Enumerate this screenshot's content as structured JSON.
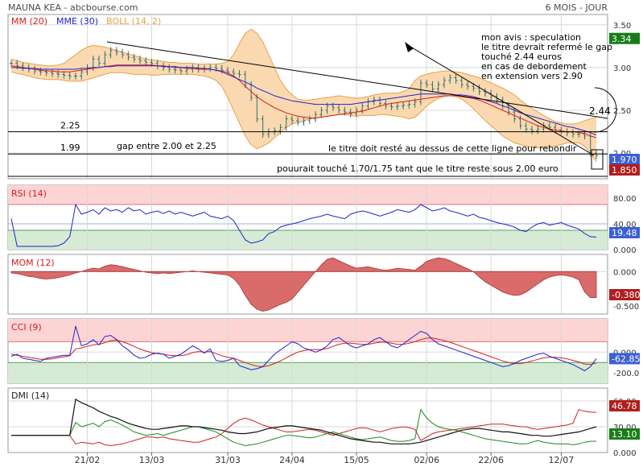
{
  "header": {
    "title": "MAUNA KEA - abcbourse.com",
    "period": "6 MOIS - JOUR"
  },
  "colors": {
    "bg": "#ffffff",
    "grid": "#d8d8d8",
    "frame": "#9a9a9a",
    "candle": "#2f6f6f",
    "mm": "#d81c1c",
    "mme": "#2222cc",
    "boll_fill": "#fbd9b0",
    "boll_line": "#e7a04a",
    "red_zone": "#fcd4d4",
    "green_zone": "#d5ebd5",
    "mom_fill": "#d96b6b",
    "badge_green": "#1a7d1a",
    "badge_red": "#b01e1e",
    "badge_blue": "#3b5fd6"
  },
  "chart_data": [
    {
      "panel": "price",
      "type": "candlestick",
      "legend": [
        {
          "label": "MM (20)",
          "color": "#d81c1c"
        },
        {
          "label": "MME (30)",
          "color": "#2222cc"
        },
        {
          "label": "BOLL (14, 2)",
          "color": "#e7a04a"
        }
      ],
      "y_ticks": [
        "3.50",
        "3.00",
        "2.50",
        "2.00"
      ],
      "ylim": [
        1.7,
        3.62
      ],
      "x_tick_labels": [
        "21/02",
        "13/03",
        "31/03",
        "24/04",
        "15/05",
        "02/06",
        "22/06",
        "12/07"
      ],
      "close": [
        3.05,
        3.02,
        3.0,
        2.98,
        2.96,
        2.95,
        2.94,
        2.93,
        2.92,
        2.91,
        2.9,
        2.9,
        2.95,
        3.0,
        3.1,
        3.05,
        3.15,
        3.2,
        3.18,
        3.15,
        3.12,
        3.1,
        3.08,
        3.06,
        3.05,
        3.02,
        3.0,
        2.98,
        2.97,
        2.96,
        2.98,
        3.0,
        2.98,
        2.99,
        3.0,
        2.99,
        2.97,
        2.95,
        2.93,
        2.92,
        2.8,
        2.65,
        2.4,
        2.22,
        2.25,
        2.26,
        2.3,
        2.4,
        2.38,
        2.36,
        2.38,
        2.4,
        2.45,
        2.5,
        2.55,
        2.53,
        2.5,
        2.48,
        2.46,
        2.5,
        2.55,
        2.6,
        2.62,
        2.58,
        2.55,
        2.54,
        2.55,
        2.56,
        2.57,
        2.6,
        2.82,
        2.8,
        2.75,
        2.8,
        2.85,
        2.88,
        2.85,
        2.8,
        2.78,
        2.76,
        2.72,
        2.7,
        2.66,
        2.62,
        2.55,
        2.48,
        2.4,
        2.32,
        2.28,
        2.26,
        2.28,
        2.32,
        2.3,
        2.27,
        2.25,
        2.24,
        2.22,
        2.22,
        2.2,
        2.0,
        1.97
      ],
      "mm20": [
        3.02,
        3.01,
        3.0,
        2.99,
        2.98,
        2.97,
        2.96,
        2.96,
        2.95,
        2.95,
        2.95,
        2.96,
        2.97,
        2.98,
        2.99,
        3.0,
        3.01,
        3.02,
        3.03,
        3.03,
        3.03,
        3.03,
        3.03,
        3.03,
        3.03,
        3.02,
        3.02,
        3.01,
        3.0,
        3.0,
        2.99,
        2.99,
        2.98,
        2.98,
        2.98,
        2.97,
        2.96,
        2.94,
        2.9,
        2.85,
        2.78,
        2.72,
        2.66,
        2.61,
        2.57,
        2.53,
        2.5,
        2.47,
        2.45,
        2.43,
        2.42,
        2.41,
        2.41,
        2.42,
        2.43,
        2.44,
        2.45,
        2.46,
        2.47,
        2.48,
        2.49,
        2.51,
        2.53,
        2.55,
        2.57,
        2.58,
        2.59,
        2.6,
        2.61,
        2.62,
        2.63,
        2.64,
        2.65,
        2.66,
        2.67,
        2.67,
        2.67,
        2.66,
        2.65,
        2.64,
        2.62,
        2.59,
        2.56,
        2.53,
        2.5,
        2.47,
        2.44,
        2.41,
        2.38,
        2.35,
        2.32,
        2.3,
        2.28,
        2.27,
        2.26,
        2.25,
        2.25,
        2.24,
        2.23,
        2.2,
        2.18
      ],
      "mme30": [
        3.0,
        3.0,
        2.99,
        2.99,
        2.99,
        2.98,
        2.98,
        2.98,
        2.98,
        2.98,
        2.98,
        2.98,
        2.99,
        2.99,
        3.0,
        3.0,
        3.01,
        3.01,
        3.02,
        3.02,
        3.02,
        3.02,
        3.02,
        3.02,
        3.02,
        3.02,
        3.01,
        3.01,
        3.01,
        3.0,
        3.0,
        3.0,
        2.99,
        2.99,
        2.98,
        2.97,
        2.95,
        2.92,
        2.89,
        2.86,
        2.83,
        2.8,
        2.76,
        2.73,
        2.7,
        2.67,
        2.65,
        2.63,
        2.61,
        2.6,
        2.59,
        2.58,
        2.57,
        2.57,
        2.57,
        2.57,
        2.57,
        2.57,
        2.57,
        2.58,
        2.59,
        2.6,
        2.61,
        2.62,
        2.63,
        2.64,
        2.65,
        2.66,
        2.67,
        2.68,
        2.69,
        2.69,
        2.69,
        2.69,
        2.69,
        2.69,
        2.68,
        2.68,
        2.67,
        2.66,
        2.64,
        2.62,
        2.6,
        2.58,
        2.55,
        2.53,
        2.5,
        2.47,
        2.45,
        2.43,
        2.41,
        2.39,
        2.37,
        2.35,
        2.33,
        2.31,
        2.3,
        2.28,
        2.26,
        2.24,
        2.21
      ],
      "boll_upper": [
        3.1,
        3.08,
        3.06,
        3.05,
        3.04,
        3.03,
        3.02,
        3.02,
        3.03,
        3.05,
        3.1,
        3.15,
        3.2,
        3.24,
        3.26,
        3.25,
        3.24,
        3.22,
        3.2,
        3.18,
        3.16,
        3.14,
        3.12,
        3.1,
        3.09,
        3.08,
        3.07,
        3.06,
        3.06,
        3.05,
        3.05,
        3.05,
        3.04,
        3.04,
        3.04,
        3.04,
        3.05,
        3.07,
        3.15,
        3.28,
        3.4,
        3.45,
        3.4,
        3.3,
        3.15,
        3.0,
        2.85,
        2.75,
        2.68,
        2.63,
        2.62,
        2.62,
        2.63,
        2.64,
        2.65,
        2.66,
        2.67,
        2.66,
        2.65,
        2.64,
        2.65,
        2.66,
        2.68,
        2.69,
        2.7,
        2.7,
        2.7,
        2.72,
        2.75,
        2.85,
        2.9,
        2.92,
        2.94,
        2.95,
        2.96,
        2.96,
        2.95,
        2.94,
        2.92,
        2.9,
        2.88,
        2.85,
        2.82,
        2.79,
        2.76,
        2.72,
        2.68,
        2.62,
        2.57,
        2.52,
        2.48,
        2.44,
        2.4,
        2.37,
        2.35,
        2.34,
        2.34,
        2.35,
        2.38,
        2.4,
        2.42
      ],
      "boll_lower": [
        2.95,
        2.93,
        2.92,
        2.9,
        2.88,
        2.87,
        2.86,
        2.86,
        2.86,
        2.85,
        2.84,
        2.84,
        2.84,
        2.86,
        2.88,
        2.9,
        2.92,
        2.94,
        2.94,
        2.94,
        2.93,
        2.92,
        2.92,
        2.92,
        2.91,
        2.91,
        2.92,
        2.92,
        2.92,
        2.92,
        2.92,
        2.92,
        2.91,
        2.9,
        2.88,
        2.85,
        2.78,
        2.65,
        2.5,
        2.35,
        2.2,
        2.1,
        2.05,
        2.08,
        2.12,
        2.18,
        2.24,
        2.3,
        2.34,
        2.36,
        2.38,
        2.4,
        2.41,
        2.42,
        2.43,
        2.44,
        2.45,
        2.45,
        2.44,
        2.43,
        2.44,
        2.44,
        2.44,
        2.45,
        2.45,
        2.44,
        2.43,
        2.42,
        2.4,
        2.42,
        2.48,
        2.55,
        2.6,
        2.64,
        2.66,
        2.67,
        2.66,
        2.63,
        2.58,
        2.52,
        2.45,
        2.38,
        2.32,
        2.26,
        2.2,
        2.16,
        2.12,
        2.1,
        2.08,
        2.07,
        2.06,
        2.06,
        2.07,
        2.08,
        2.1,
        2.12,
        2.12,
        2.12,
        2.08,
        2.0,
        1.9
      ],
      "value_badges": [
        {
          "label": "3.34",
          "color": "#1a7d1a"
        },
        {
          "label": "1.970",
          "color": "#3b5fd6"
        },
        {
          "label": "1.850",
          "color": "#b01e1e"
        }
      ],
      "horizontal_lines": [
        {
          "label": "2.25",
          "value": 2.25
        },
        {
          "label": "1.99",
          "value": 1.99
        }
      ],
      "annotations": {
        "opinion": [
          "mon avis : speculation",
          "le titre devrait refermé le gap",
          "touché 2.44 euros",
          "en cas de debordement",
          "en extension vers 2.90"
        ],
        "gap": "gap entre 2.00 et 2.25",
        "stay_above": "le titre  doit resté au dessus de cette ligne pour rebondir",
        "target_low": "pouurait touché 1.70/1.75 tant que le titre reste sous 2.00 euro",
        "target_244": "2.44"
      }
    },
    {
      "panel": "rsi",
      "type": "line",
      "legend": [
        {
          "label": "RSI (14)",
          "color": "#d81c1c"
        }
      ],
      "y_ticks": [
        "80.00",
        "40.00",
        "0.000"
      ],
      "ylim": [
        0,
        100
      ],
      "values": [
        48,
        5,
        5,
        5,
        5,
        5,
        5,
        5,
        6,
        10,
        20,
        70,
        55,
        58,
        62,
        55,
        65,
        60,
        62,
        58,
        65,
        60,
        62,
        55,
        58,
        60,
        56,
        60,
        55,
        58,
        55,
        52,
        55,
        58,
        52,
        50,
        48,
        52,
        45,
        30,
        15,
        10,
        12,
        15,
        25,
        28,
        35,
        38,
        40,
        42,
        45,
        48,
        50,
        52,
        55,
        52,
        50,
        48,
        55,
        58,
        60,
        58,
        55,
        52,
        55,
        58,
        62,
        60,
        58,
        62,
        70,
        65,
        60,
        62,
        65,
        60,
        58,
        55,
        52,
        55,
        50,
        48,
        45,
        42,
        40,
        38,
        35,
        30,
        28,
        35,
        40,
        42,
        38,
        40,
        42,
        38,
        35,
        32,
        25,
        20,
        19.48
      ],
      "zones": {
        "red_from": 70,
        "green_to": 30
      },
      "value_badges": [
        {
          "label": "19.48",
          "color": "#3b5fd6"
        }
      ]
    },
    {
      "panel": "momentum",
      "type": "area",
      "legend": [
        {
          "label": "MOM (12)",
          "color": "#d81c1c"
        }
      ],
      "y_ticks": [
        "0.000",
        "-0.500"
      ],
      "ylim": [
        -0.62,
        0.25
      ],
      "values": [
        -0.02,
        -0.03,
        -0.05,
        -0.07,
        -0.08,
        -0.1,
        -0.11,
        -0.1,
        -0.09,
        -0.07,
        -0.05,
        -0.02,
        0.0,
        0.03,
        0.05,
        0.04,
        0.08,
        0.1,
        0.09,
        0.07,
        0.05,
        0.03,
        0.01,
        -0.01,
        -0.02,
        -0.03,
        -0.02,
        -0.03,
        -0.02,
        -0.01,
        0.0,
        0.01,
        0.0,
        -0.01,
        -0.02,
        -0.03,
        -0.04,
        -0.05,
        -0.1,
        -0.2,
        -0.35,
        -0.48,
        -0.55,
        -0.58,
        -0.56,
        -0.52,
        -0.48,
        -0.45,
        -0.4,
        -0.3,
        -0.2,
        -0.1,
        0.0,
        0.1,
        0.18,
        0.2,
        0.16,
        0.12,
        0.08,
        0.05,
        0.06,
        0.07,
        0.05,
        0.03,
        0.02,
        0.03,
        0.05,
        0.04,
        0.03,
        0.02,
        0.08,
        0.15,
        0.18,
        0.2,
        0.19,
        0.16,
        0.12,
        0.08,
        0.04,
        0.0,
        -0.08,
        -0.15,
        -0.2,
        -0.25,
        -0.3,
        -0.33,
        -0.35,
        -0.34,
        -0.3,
        -0.24,
        -0.18,
        -0.12,
        -0.08,
        -0.06,
        -0.05,
        -0.06,
        -0.08,
        -0.12,
        -0.3,
        -0.38,
        -0.38
      ],
      "value_badges": [
        {
          "label": "-0.380",
          "color": "#b01e1e"
        }
      ]
    },
    {
      "panel": "cci",
      "type": "line",
      "legend": [
        {
          "label": "CCI (9)",
          "color": "#d81c1c"
        }
      ],
      "y_ticks": [
        "0.000",
        "-200.0"
      ],
      "ylim": [
        -300,
        320
      ],
      "cci": [
        -40,
        -20,
        -60,
        -70,
        -80,
        -90,
        -60,
        -50,
        -40,
        -30,
        -30,
        250,
        60,
        80,
        120,
        70,
        150,
        160,
        120,
        60,
        20,
        -30,
        -60,
        -50,
        -20,
        -10,
        -20,
        -60,
        -40,
        -20,
        20,
        60,
        30,
        -10,
        30,
        -80,
        -90,
        -80,
        -60,
        -130,
        -150,
        -170,
        -160,
        -140,
        -80,
        -20,
        20,
        60,
        100,
        80,
        40,
        20,
        0,
        20,
        60,
        120,
        140,
        100,
        60,
        40,
        60,
        80,
        120,
        140,
        100,
        60,
        40,
        80,
        120,
        160,
        200,
        180,
        120,
        80,
        60,
        40,
        20,
        0,
        -20,
        -40,
        -60,
        -80,
        -100,
        -120,
        -140,
        -130,
        -110,
        -80,
        -60,
        -40,
        -20,
        -10,
        -40,
        -60,
        -80,
        -100,
        -120,
        -150,
        -180,
        -140,
        -62.85
      ],
      "signal": [
        -20,
        -30,
        -40,
        -50,
        -60,
        -70,
        -70,
        -65,
        -55,
        -45,
        -35,
        30,
        40,
        55,
        70,
        75,
        90,
        110,
        115,
        100,
        80,
        55,
        30,
        10,
        -5,
        -15,
        -20,
        -30,
        -35,
        -35,
        -25,
        -5,
        5,
        0,
        5,
        -15,
        -35,
        -50,
        -60,
        -80,
        -100,
        -120,
        -135,
        -140,
        -130,
        -110,
        -85,
        -55,
        -25,
        0,
        15,
        25,
        25,
        25,
        35,
        55,
        75,
        85,
        85,
        80,
        75,
        75,
        85,
        95,
        95,
        85,
        75,
        75,
        85,
        100,
        120,
        135,
        135,
        125,
        110,
        95,
        75,
        55,
        35,
        15,
        -5,
        -25,
        -45,
        -65,
        -85,
        -100,
        -110,
        -110,
        -100,
        -85,
        -70,
        -55,
        -50,
        -50,
        -55,
        -65,
        -80,
        -95,
        -115,
        -120,
        -105
      ]
    },
    {
      "panel": "dmi",
      "type": "line",
      "legend": [
        {
          "label": "DMI (14)",
          "color": "#222222"
        }
      ],
      "y_ticks": [
        "60.00",
        "30.00",
        "0.000"
      ],
      "ylim": [
        0,
        75
      ],
      "adx": [
        20,
        20,
        20,
        20,
        20,
        20,
        20,
        20,
        20,
        20,
        20,
        62,
        58,
        55,
        52,
        48,
        45,
        42,
        40,
        37,
        34,
        32,
        30,
        28,
        27,
        27,
        28,
        29,
        30,
        31,
        31,
        30,
        30,
        29,
        28,
        27,
        26,
        24,
        23,
        22,
        22,
        23,
        24,
        26,
        28,
        29,
        30,
        31,
        31,
        30,
        29,
        28,
        27,
        26,
        24,
        22,
        20,
        18,
        16,
        15,
        14,
        13,
        12,
        12,
        11,
        10,
        10,
        10,
        10,
        11,
        12,
        14,
        16,
        18,
        20,
        22,
        24,
        26,
        27,
        28,
        28,
        27,
        26,
        25,
        24,
        24,
        23,
        22,
        21,
        20,
        20,
        19,
        19,
        20,
        21,
        22,
        23,
        24,
        26,
        28,
        30
      ],
      "di_plus": [
        20,
        20,
        20,
        20,
        20,
        20,
        20,
        20,
        20,
        20,
        20,
        35,
        30,
        32,
        34,
        30,
        36,
        38,
        35,
        32,
        28,
        24,
        22,
        20,
        21,
        22,
        20,
        22,
        24,
        26,
        28,
        30,
        30,
        28,
        26,
        24,
        20,
        16,
        12,
        10,
        8,
        9,
        10,
        12,
        14,
        16,
        18,
        20,
        20,
        19,
        18,
        17,
        18,
        20,
        22,
        24,
        22,
        20,
        18,
        16,
        15,
        16,
        17,
        18,
        16,
        14,
        13,
        13,
        14,
        16,
        50,
        40,
        34,
        30,
        28,
        27,
        26,
        24,
        22,
        20,
        18,
        16,
        15,
        14,
        13,
        12,
        11,
        10,
        10,
        12,
        14,
        12,
        11,
        10,
        10,
        10,
        9,
        10,
        12,
        13,
        13.1
      ],
      "di_minus": [
        20,
        20,
        20,
        20,
        20,
        20,
        20,
        20,
        20,
        20,
        20,
        10,
        12,
        11,
        10,
        12,
        9,
        8,
        9,
        10,
        12,
        14,
        16,
        18,
        18,
        17,
        18,
        16,
        15,
        14,
        13,
        12,
        12,
        14,
        16,
        18,
        22,
        28,
        34,
        38,
        40,
        38,
        35,
        32,
        30,
        28,
        26,
        24,
        24,
        25,
        26,
        27,
        26,
        24,
        22,
        20,
        22,
        24,
        26,
        28,
        29,
        28,
        26,
        24,
        26,
        28,
        29,
        30,
        29,
        27,
        14,
        18,
        22,
        24,
        25,
        26,
        27,
        28,
        29,
        30,
        31,
        32,
        33,
        33,
        33,
        32,
        31,
        30,
        30,
        28,
        27,
        28,
        29,
        30,
        31,
        32,
        34,
        50,
        48,
        47,
        46.78
      ],
      "value_badges": [
        {
          "label": "46.78",
          "color": "#b01e1e"
        },
        {
          "label": "13.10",
          "color": "#1a7d1a"
        }
      ]
    }
  ]
}
